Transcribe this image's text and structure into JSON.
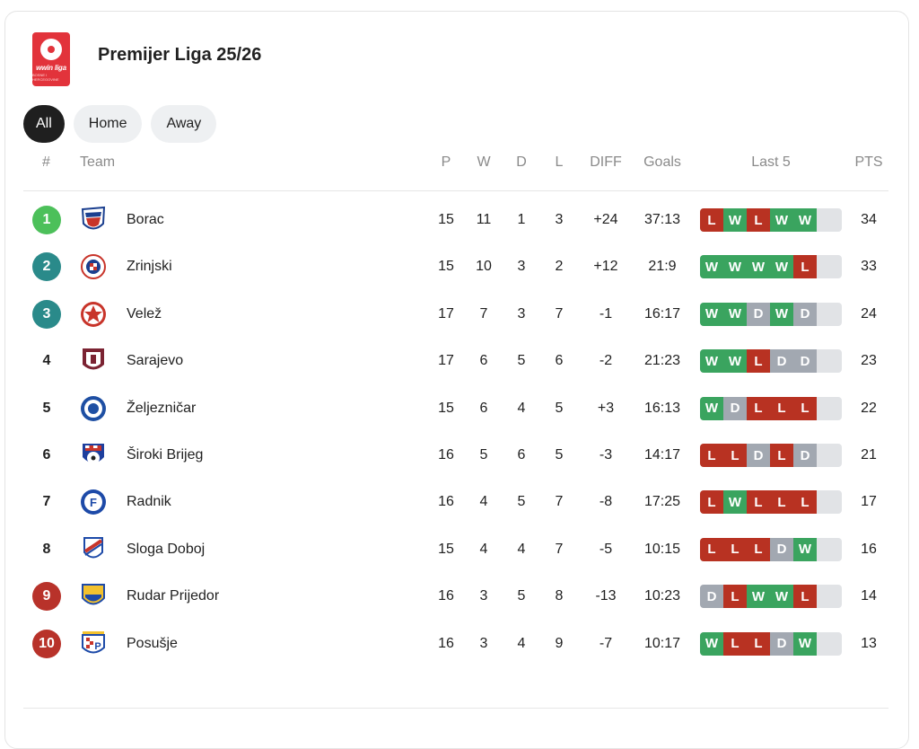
{
  "league": {
    "title": "Premijer Liga 25/26",
    "logo_text": "wwin liga",
    "logo_subtext": "BOSNE I HERCEGOVINE",
    "logo_color": "#e2333b"
  },
  "filters": [
    {
      "label": "All",
      "active": true
    },
    {
      "label": "Home",
      "active": false
    },
    {
      "label": "Away",
      "active": false
    }
  ],
  "columns": {
    "rank": "#",
    "team": "Team",
    "played": "P",
    "won": "W",
    "drawn": "D",
    "lost": "L",
    "diff": "DIFF",
    "goals": "Goals",
    "last5": "Last 5",
    "pts": "PTS"
  },
  "colors": {
    "rank_green": "#4cc05a",
    "rank_teal": "#2a8a8a",
    "rank_red": "#b8322a",
    "form_win": "#3aa45f",
    "form_loss": "#b83222",
    "form_draw": "#a2a8b1"
  },
  "rows": [
    {
      "rank": "1",
      "rank_style": "green",
      "team": "Borac",
      "crest": "borac-crest",
      "p": "15",
      "w": "11",
      "d": "1",
      "l": "3",
      "diff": "+24",
      "goals": "37:13",
      "form": [
        "L",
        "W",
        "L",
        "W",
        "W"
      ],
      "pts": "34"
    },
    {
      "rank": "2",
      "rank_style": "teal",
      "team": "Zrinjski",
      "crest": "zrinjski-crest",
      "p": "15",
      "w": "10",
      "d": "3",
      "l": "2",
      "diff": "+12",
      "goals": "21:9",
      "form": [
        "W",
        "W",
        "W",
        "W",
        "L"
      ],
      "pts": "33"
    },
    {
      "rank": "3",
      "rank_style": "teal",
      "team": "Velež",
      "crest": "velez-crest",
      "p": "17",
      "w": "7",
      "d": "3",
      "l": "7",
      "diff": "-1",
      "goals": "16:17",
      "form": [
        "W",
        "W",
        "D",
        "W",
        "D"
      ],
      "pts": "24"
    },
    {
      "rank": "4",
      "rank_style": "plain",
      "team": "Sarajevo",
      "crest": "sarajevo-crest",
      "p": "17",
      "w": "6",
      "d": "5",
      "l": "6",
      "diff": "-2",
      "goals": "21:23",
      "form": [
        "W",
        "W",
        "L",
        "D",
        "D"
      ],
      "pts": "23"
    },
    {
      "rank": "5",
      "rank_style": "plain",
      "team": "Željezničar",
      "crest": "zeljeznicar-crest",
      "p": "15",
      "w": "6",
      "d": "4",
      "l": "5",
      "diff": "+3",
      "goals": "16:13",
      "form": [
        "W",
        "D",
        "L",
        "L",
        "L"
      ],
      "pts": "22"
    },
    {
      "rank": "6",
      "rank_style": "plain",
      "team": "Široki Brijeg",
      "crest": "siroki-brijeg-crest",
      "p": "16",
      "w": "5",
      "d": "6",
      "l": "5",
      "diff": "-3",
      "goals": "14:17",
      "form": [
        "L",
        "L",
        "D",
        "L",
        "D"
      ],
      "pts": "21"
    },
    {
      "rank": "7",
      "rank_style": "plain",
      "team": "Radnik",
      "crest": "radnik-crest",
      "p": "16",
      "w": "4",
      "d": "5",
      "l": "7",
      "diff": "-8",
      "goals": "17:25",
      "form": [
        "L",
        "W",
        "L",
        "L",
        "L"
      ],
      "pts": "17"
    },
    {
      "rank": "8",
      "rank_style": "plain",
      "team": "Sloga Doboj",
      "crest": "sloga-doboj-crest",
      "p": "15",
      "w": "4",
      "d": "4",
      "l": "7",
      "diff": "-5",
      "goals": "10:15",
      "form": [
        "L",
        "L",
        "L",
        "D",
        "W"
      ],
      "pts": "16"
    },
    {
      "rank": "9",
      "rank_style": "red",
      "team": "Rudar Prijedor",
      "crest": "rudar-prijedor-crest",
      "p": "16",
      "w": "3",
      "d": "5",
      "l": "8",
      "diff": "-13",
      "goals": "10:23",
      "form": [
        "D",
        "L",
        "W",
        "W",
        "L"
      ],
      "pts": "14"
    },
    {
      "rank": "10",
      "rank_style": "red",
      "team": "Posušje",
      "crest": "posusje-crest",
      "p": "16",
      "w": "3",
      "d": "4",
      "l": "9",
      "diff": "-7",
      "goals": "10:17",
      "form": [
        "W",
        "L",
        "L",
        "D",
        "W"
      ],
      "pts": "13"
    }
  ]
}
